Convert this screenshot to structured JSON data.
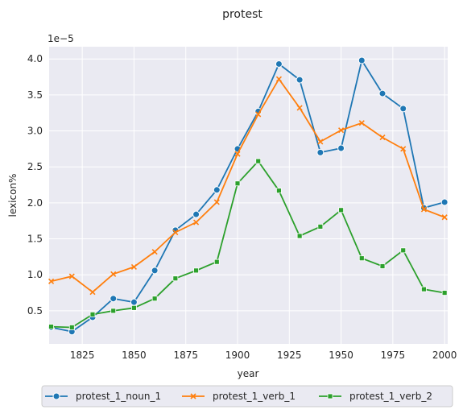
{
  "chart_data": {
    "type": "line",
    "title": "protest",
    "xlabel": "year",
    "ylabel": "lexicon%",
    "y_scale_label": "1e−5",
    "xlim": [
      1809,
      2001.5
    ],
    "ylim": [
      0.04,
      4.17
    ],
    "x_ticks": [
      1825,
      1850,
      1875,
      1900,
      1925,
      1950,
      1975,
      2000
    ],
    "y_ticks": [
      0.5,
      1.0,
      1.5,
      2.0,
      2.5,
      3.0,
      3.5,
      4.0
    ],
    "y_tick_labels": [
      "0.5",
      "1.0",
      "1.5",
      "2.0",
      "2.5",
      "3.0",
      "3.5",
      "4.0"
    ],
    "grid": true,
    "legend_position": "bottom-center",
    "x": [
      1810,
      1820,
      1830,
      1840,
      1850,
      1860,
      1870,
      1880,
      1890,
      1900,
      1910,
      1920,
      1930,
      1940,
      1950,
      1960,
      1970,
      1980,
      1990,
      2000
    ],
    "series": [
      {
        "name": "protest_1_noun_1",
        "color": "#1f77b4",
        "marker": "circle",
        "values": [
          0.27,
          0.21,
          0.41,
          0.67,
          0.62,
          1.06,
          1.62,
          1.84,
          2.18,
          2.75,
          3.27,
          3.93,
          3.71,
          2.7,
          2.76,
          3.98,
          3.52,
          3.31,
          1.93,
          2.01
        ]
      },
      {
        "name": "protest_1_verb_1",
        "color": "#ff7f0e",
        "marker": "x",
        "values": [
          0.91,
          0.98,
          0.76,
          1.01,
          1.11,
          1.32,
          1.59,
          1.73,
          2.01,
          2.68,
          3.23,
          3.72,
          3.32,
          2.85,
          3.01,
          3.11,
          2.91,
          2.75,
          1.91,
          1.8
        ]
      },
      {
        "name": "protest_1_verb_2",
        "color": "#2ca02c",
        "marker": "square",
        "values": [
          0.28,
          0.27,
          0.45,
          0.5,
          0.54,
          0.67,
          0.95,
          1.06,
          1.18,
          2.27,
          2.58,
          2.17,
          1.54,
          1.67,
          1.9,
          1.23,
          1.12,
          1.34,
          0.8,
          0.75
        ]
      }
    ]
  }
}
